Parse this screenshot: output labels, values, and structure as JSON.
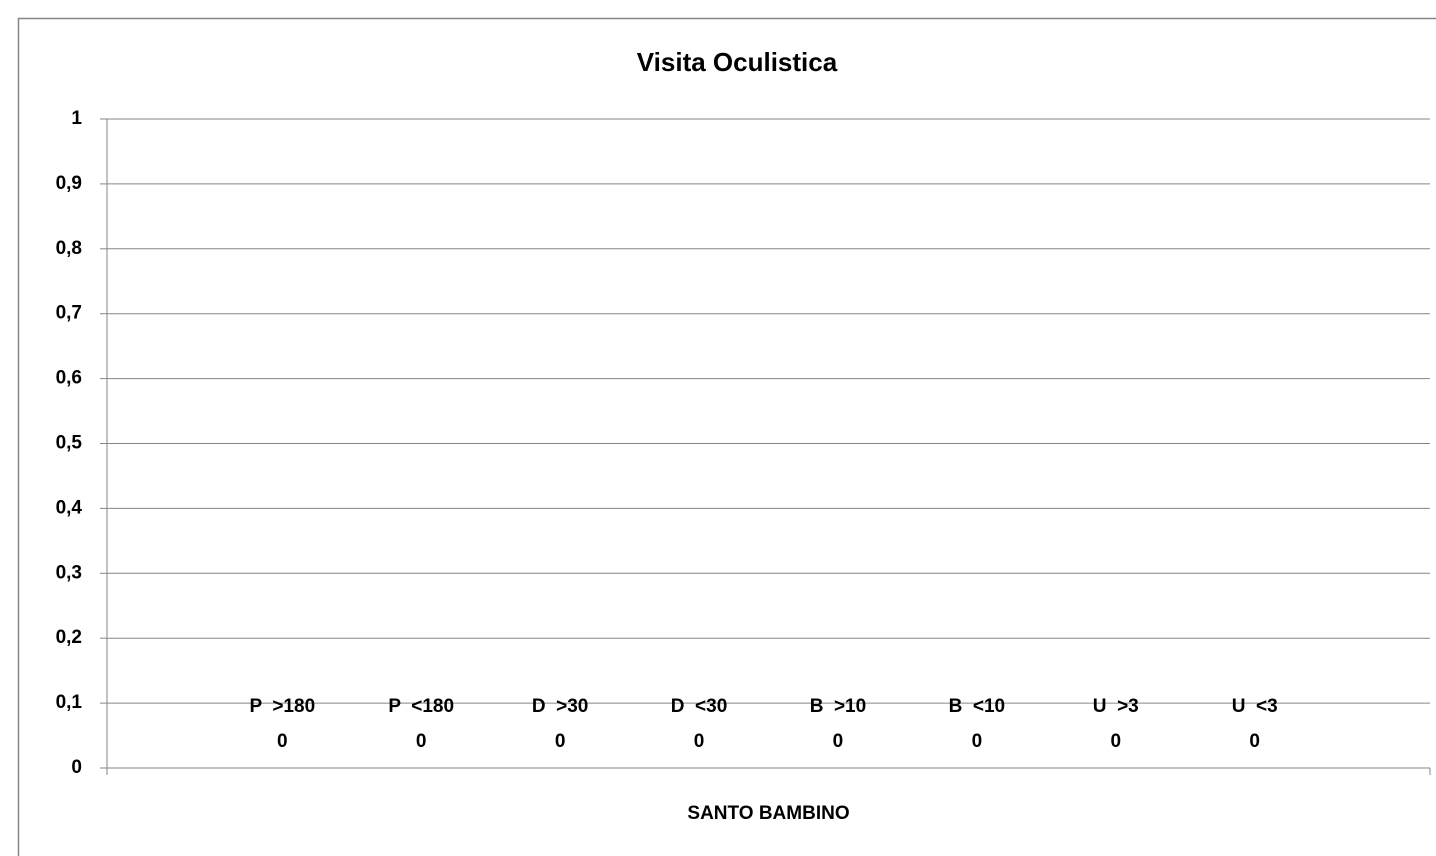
{
  "chart_data": {
    "type": "bar",
    "title": "Visita Oculistica",
    "categories": [
      "SANTO BAMBINO"
    ],
    "series": [
      {
        "name": "P  >180",
        "values": [
          0
        ]
      },
      {
        "name": "P  <180",
        "values": [
          0
        ]
      },
      {
        "name": "D  >30",
        "values": [
          0
        ]
      },
      {
        "name": "D  <30",
        "values": [
          0
        ]
      },
      {
        "name": "B  >10",
        "values": [
          0
        ]
      },
      {
        "name": "B  <10",
        "values": [
          0
        ]
      },
      {
        "name": "U  >3",
        "values": [
          0
        ]
      },
      {
        "name": "U  <3",
        "values": [
          0
        ]
      }
    ],
    "ylim": [
      0,
      1
    ],
    "yticks": [
      0,
      {
        "value": 0.1,
        "label": "0,1"
      },
      {
        "value": 0.2,
        "label": "0,2"
      },
      {
        "value": 0.3,
        "label": "0,3"
      },
      {
        "value": 0.4,
        "label": "0,4"
      },
      {
        "value": 0.5,
        "label": "0,5"
      },
      {
        "value": 0.6,
        "label": "0,6"
      },
      {
        "value": 0.7,
        "label": "0,7"
      },
      {
        "value": 0.8,
        "label": "0,8"
      },
      {
        "value": 0.9,
        "label": "0,9"
      },
      1
    ],
    "grid": true
  }
}
